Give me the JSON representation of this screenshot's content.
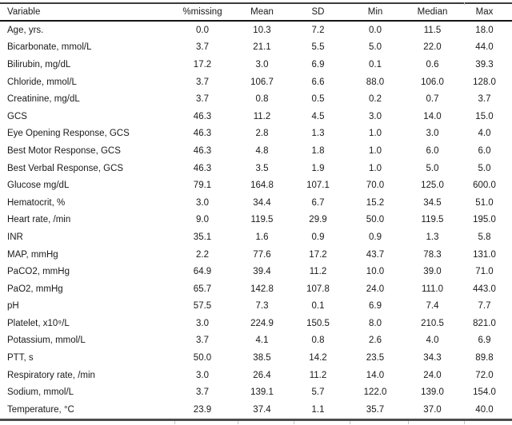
{
  "table": {
    "columns": [
      "Variable",
      "%missing",
      "Mean",
      "SD",
      "Min",
      "Median",
      "Max"
    ],
    "rows": [
      [
        "Age, yrs.",
        "0.0",
        "10.3",
        "7.2",
        "0.0",
        "11.5",
        "18.0"
      ],
      [
        "Bicarbonate, mmol/L",
        "3.7",
        "21.1",
        "5.5",
        "5.0",
        "22.0",
        "44.0"
      ],
      [
        "Bilirubin, mg/dL",
        "17.2",
        "3.0",
        "6.9",
        "0.1",
        "0.6",
        "39.3"
      ],
      [
        "Chloride, mmol/L",
        "3.7",
        "106.7",
        "6.6",
        "88.0",
        "106.0",
        "128.0"
      ],
      [
        "Creatinine, mg/dL",
        "3.7",
        "0.8",
        "0.5",
        "0.2",
        "0.7",
        "3.7"
      ],
      [
        "GCS",
        "46.3",
        "11.2",
        "4.5",
        "3.0",
        "14.0",
        "15.0"
      ],
      [
        "Eye Opening Response, GCS",
        "46.3",
        "2.8",
        "1.3",
        "1.0",
        "3.0",
        "4.0"
      ],
      [
        "Best Motor Response, GCS",
        "46.3",
        "4.8",
        "1.8",
        "1.0",
        "6.0",
        "6.0"
      ],
      [
        "Best Verbal Response, GCS",
        "46.3",
        "3.5",
        "1.9",
        "1.0",
        "5.0",
        "5.0"
      ],
      [
        "Glucose mg/dL",
        "79.1",
        "164.8",
        "107.1",
        "70.0",
        "125.0",
        "600.0"
      ],
      [
        "Hematocrit, %",
        "3.0",
        "34.4",
        "6.7",
        "15.2",
        "34.5",
        "51.0"
      ],
      [
        "Heart rate, /min",
        "9.0",
        "119.5",
        "29.9",
        "50.0",
        "119.5",
        "195.0"
      ],
      [
        "INR",
        "35.1",
        "1.6",
        "0.9",
        "0.9",
        "1.3",
        "5.8"
      ],
      [
        "MAP, mmHg",
        "2.2",
        "77.6",
        "17.2",
        "43.7",
        "78.3",
        "131.0"
      ],
      [
        "PaCO2, mmHg",
        "64.9",
        "39.4",
        "11.2",
        "10.0",
        "39.0",
        "71.0"
      ],
      [
        "PaO2, mmHg",
        "65.7",
        "142.8",
        "107.8",
        "24.0",
        "111.0",
        "443.0"
      ],
      [
        "pH",
        "57.5",
        "7.3",
        "0.1",
        "6.9",
        "7.4",
        "7.7"
      ],
      [
        "Platelet, x10⁹/L",
        "3.0",
        "224.9",
        "150.5",
        "8.0",
        "210.5",
        "821.0"
      ],
      [
        "Potassium, mmol/L",
        "3.7",
        "4.1",
        "0.8",
        "2.6",
        "4.0",
        "6.9"
      ],
      [
        "PTT, s",
        "50.0",
        "38.5",
        "14.2",
        "23.5",
        "34.3",
        "89.8"
      ],
      [
        "Respiratory rate, /min",
        "3.0",
        "26.4",
        "11.2",
        "14.0",
        "24.0",
        "72.0"
      ],
      [
        "Sodium, mmol/L",
        "3.7",
        "139.1",
        "5.7",
        "122.0",
        "139.0",
        "154.0"
      ],
      [
        "Temperature, °C",
        "23.9",
        "37.4",
        "1.1",
        "35.7",
        "37.0",
        "40.0"
      ]
    ]
  },
  "colors": {
    "text": "#1a1a1a",
    "top_rule": "#3b3b3b",
    "header_rule": "#141414",
    "bottom_rule": "#4d4d4d",
    "tick": "#c4c4c4"
  },
  "layout_ticks_x": [
    218,
    297,
    367,
    437,
    510,
    580
  ]
}
